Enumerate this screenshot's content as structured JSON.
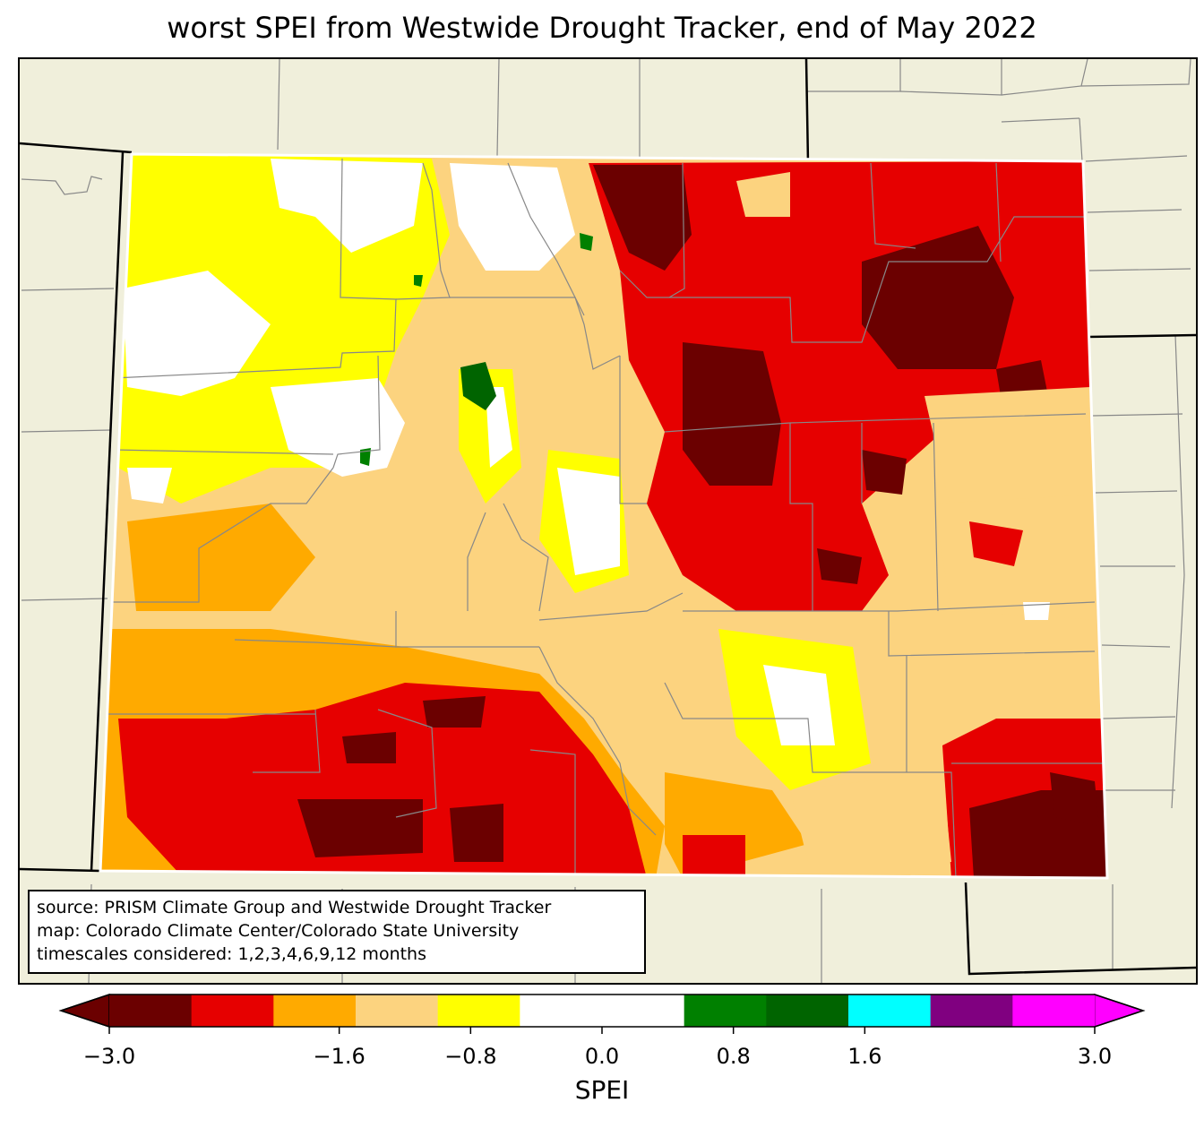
{
  "title": "worst SPEI from Westwide Drought Tracker, end of May 2022",
  "info": {
    "source": "source: PRISM Climate Group and Westwide Drought Tracker",
    "map": "map: Colorado Climate Center/Colorado State University",
    "timescales": "timescales considered: 1,2,3,4,6,9,12 months"
  },
  "colorbar": {
    "label": "SPEI",
    "range": [
      -3.0,
      3.0
    ],
    "colors": [
      "#6b0000",
      "#e60000",
      "#ffaa00",
      "#fcd37f",
      "#ffff00",
      "#ffffff",
      "#ffffff",
      "#008000",
      "#006400",
      "#00ffff",
      "#800080",
      "#ff00ff"
    ],
    "extend_low_color": "#6b0000",
    "extend_high_color": "#ff00ff",
    "ticks": [
      {
        "value": -3.0,
        "label": "−3.0"
      },
      {
        "value": -1.6,
        "label": "−1.6"
      },
      {
        "value": -0.8,
        "label": "−0.8"
      },
      {
        "value": 0.0,
        "label": "0.0"
      },
      {
        "value": 0.8,
        "label": "0.8"
      },
      {
        "value": 1.6,
        "label": "1.6"
      },
      {
        "value": 3.0,
        "label": "3.0"
      }
    ]
  },
  "colors": {
    "land": "#f0efdb",
    "extreme": "#6b0000",
    "severe": "#e60000",
    "moderate": "#ffaa00",
    "abnormal": "#fcd37f",
    "mild": "#ffff00",
    "normal": "#ffffff",
    "wet": "#008000",
    "very_wet": "#006400",
    "county_line": "#888888",
    "border": "#000000"
  }
}
